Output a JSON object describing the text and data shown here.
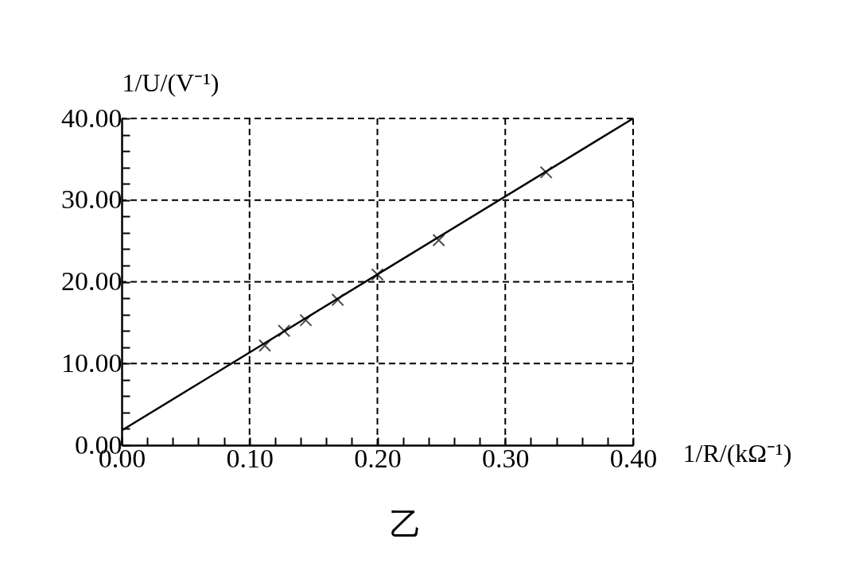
{
  "chart_data": {
    "type": "scatter",
    "xlabel": "1/R/(kΩ⁻¹)",
    "ylabel": "1/U/(V⁻¹)",
    "annotations": [
      "乙"
    ],
    "xlim": [
      0,
      0.4
    ],
    "ylim": [
      0,
      40
    ],
    "xticks": [
      {
        "value": 0,
        "label": "0.00"
      },
      {
        "value": 0.02,
        "label": null
      },
      {
        "value": 0.04,
        "label": null
      },
      {
        "value": 0.06,
        "label": null
      },
      {
        "value": 0.08,
        "label": null
      },
      {
        "value": 0.1,
        "label": "0.10"
      },
      {
        "value": 0.12,
        "label": null
      },
      {
        "value": 0.14,
        "label": null
      },
      {
        "value": 0.16,
        "label": null
      },
      {
        "value": 0.18,
        "label": null
      },
      {
        "value": 0.2,
        "label": "0.20"
      },
      {
        "value": 0.22,
        "label": null
      },
      {
        "value": 0.24,
        "label": null
      },
      {
        "value": 0.26,
        "label": null
      },
      {
        "value": 0.28,
        "label": null
      },
      {
        "value": 0.3,
        "label": "0.30"
      },
      {
        "value": 0.32,
        "label": null
      },
      {
        "value": 0.34,
        "label": null
      },
      {
        "value": 0.36,
        "label": null
      },
      {
        "value": 0.38,
        "label": null
      },
      {
        "value": 0.4,
        "label": "0.40"
      }
    ],
    "yticks": [
      {
        "value": 0,
        "label": "0.00"
      },
      {
        "value": 2,
        "label": null
      },
      {
        "value": 4,
        "label": null
      },
      {
        "value": 6,
        "label": null
      },
      {
        "value": 8,
        "label": null
      },
      {
        "value": 10,
        "label": "10.00"
      },
      {
        "value": 12,
        "label": null
      },
      {
        "value": 14,
        "label": null
      },
      {
        "value": 16,
        "label": null
      },
      {
        "value": 18,
        "label": null
      },
      {
        "value": 20,
        "label": "20.00"
      },
      {
        "value": 22,
        "label": null
      },
      {
        "value": 24,
        "label": null
      },
      {
        "value": 26,
        "label": null
      },
      {
        "value": 28,
        "label": null
      },
      {
        "value": 30,
        "label": "30.00"
      },
      {
        "value": 32,
        "label": null
      },
      {
        "value": 34,
        "label": null
      },
      {
        "value": 36,
        "label": null
      },
      {
        "value": 38,
        "label": null
      },
      {
        "value": 40,
        "label": "40.00"
      }
    ],
    "grid": true,
    "marker": "cross",
    "series": [
      {
        "color": "#000000",
        "x": [
          0.112,
          0.127,
          0.144,
          0.169,
          0.2,
          0.248,
          0.332
        ],
        "values": [
          12.2,
          14.0,
          15.3,
          17.8,
          20.9,
          25.1,
          33.4
        ]
      },
      {
        "type": "line",
        "color": "#000000",
        "line_style": "solid",
        "marker": "none",
        "x": [
          0,
          0.4
        ],
        "values": [
          1.8,
          40
        ]
      }
    ]
  }
}
